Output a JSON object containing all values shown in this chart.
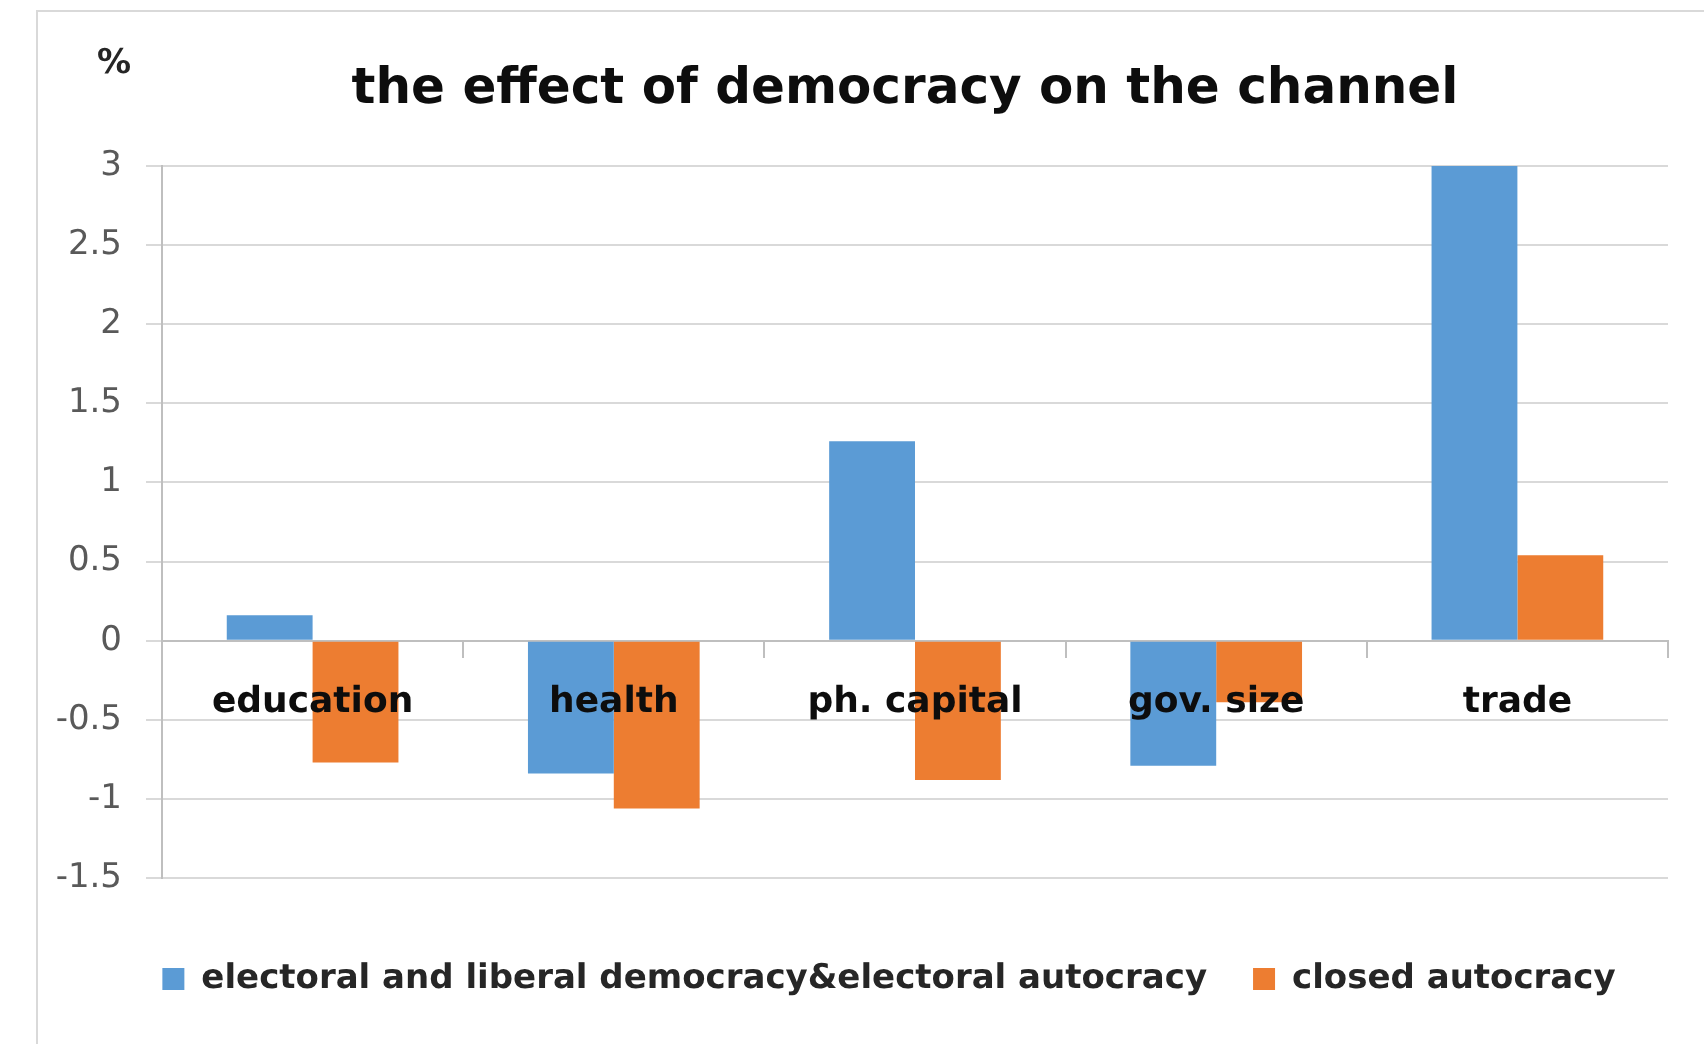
{
  "chart_data": {
    "type": "bar",
    "title": "the effect of democracy on the channel",
    "ylabel": "%",
    "categories": [
      "education",
      "health",
      "ph. capital",
      "gov. size",
      "trade"
    ],
    "series": [
      {
        "name": "electoral and liberal democracy&electoral autocracy",
        "color": "#5b9bd5",
        "values": [
          0.16,
          -0.84,
          1.26,
          -0.79,
          3
        ]
      },
      {
        "name": "closed autocracy",
        "color": "#ed7d31",
        "values": [
          -0.77,
          -1.06,
          -0.88,
          -0.39,
          0.54
        ]
      }
    ],
    "ylim": [
      -1.5,
      3
    ],
    "yticks": [
      -1.5,
      -1,
      -0.5,
      0,
      0.5,
      1,
      1.5,
      2,
      2.5,
      3
    ],
    "grid": "y",
    "legend": "bottom"
  }
}
